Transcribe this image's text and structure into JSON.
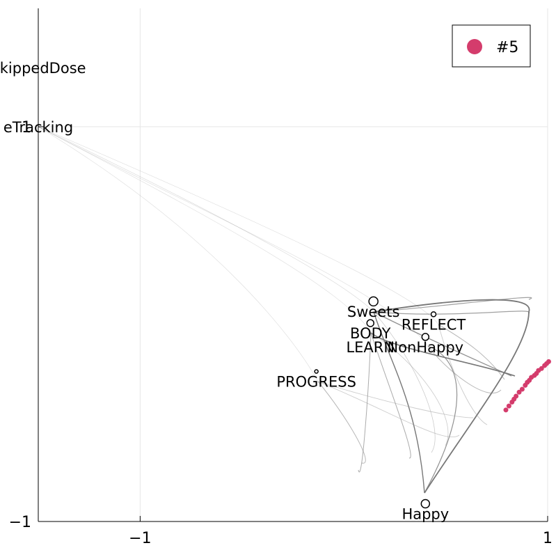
{
  "chart_data": {
    "type": "scatter",
    "title": "",
    "xlabel": "",
    "ylabel": "",
    "xlim": [
      -1.5,
      1.0
    ],
    "ylim": [
      -1.0,
      1.0
    ],
    "x_ticks": [
      {
        "value": -1,
        "label": "−1"
      },
      {
        "value": 1,
        "label": "1"
      }
    ],
    "y_ticks": [
      {
        "value": -1,
        "label": "−1"
      },
      {
        "value": 1,
        "label": "1"
      }
    ],
    "grid": true,
    "legend_position": "top-right",
    "nodes": [
      {
        "label": "SkippedDose",
        "x": -1.5,
        "y": 1.35,
        "size": 0
      },
      {
        "label": "eTracking",
        "x": -1.5,
        "y": 1.05,
        "size": 0
      },
      {
        "label": "Sweets",
        "x": 0.145,
        "y": 0.115,
        "size": 13
      },
      {
        "label": "BODY",
        "x": 0.13,
        "y": 0.005,
        "size": 10
      },
      {
        "label": "REFLECT",
        "x": 0.44,
        "y": 0.05,
        "size": 7
      },
      {
        "label": "LEARN",
        "x": 0.13,
        "y": -0.065,
        "size": 0
      },
      {
        "label": "NonHappy",
        "x": 0.4,
        "y": -0.065,
        "size": 10
      },
      {
        "label": "PROGRESS",
        "x": -0.135,
        "y": -0.24,
        "size": 5
      },
      {
        "label": "Happy",
        "x": 0.4,
        "y": -0.91,
        "size": 12
      }
    ],
    "series": [
      {
        "name": "#5",
        "color": "#d43c6c",
        "x": [
          0.795,
          0.81,
          0.825,
          0.835,
          0.845,
          0.86,
          0.875,
          0.89,
          0.9,
          0.91,
          0.92,
          0.935,
          0.945,
          0.955,
          0.97,
          0.985,
          0.995,
          1.005
        ],
        "y": [
          -0.435,
          -0.415,
          -0.395,
          -0.38,
          -0.365,
          -0.345,
          -0.33,
          -0.31,
          -0.295,
          -0.285,
          -0.27,
          -0.26,
          -0.25,
          -0.235,
          -0.225,
          -0.21,
          -0.2,
          -0.19
        ]
      }
    ]
  }
}
